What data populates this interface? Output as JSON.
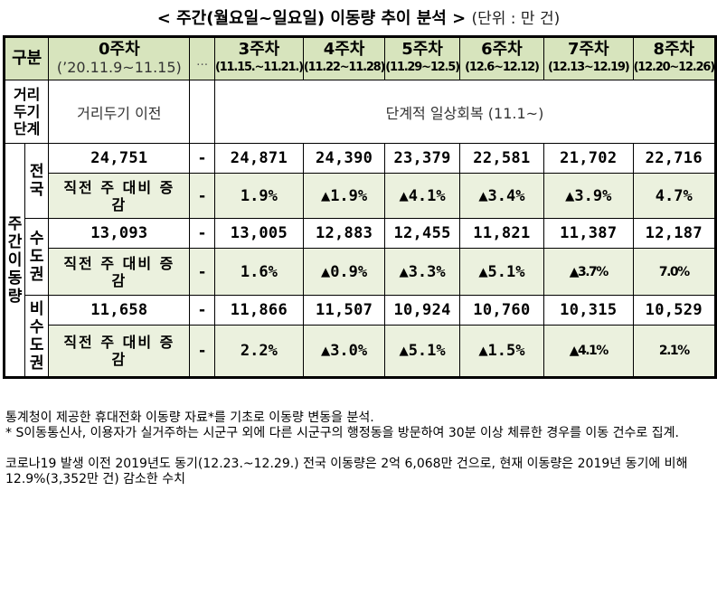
{
  "title": {
    "main": "< 주간(월요일~일요일) 이동량 추이 분석 >",
    "unit": "(단위 : 만 건)"
  },
  "header": {
    "category_label": "구분",
    "week0_label": "0주차",
    "week0_period": "(’20.11.9~11.15)",
    "ellipsis": "…",
    "weeks": [
      {
        "label": "3주차",
        "period": "(11.15.~11.21.)"
      },
      {
        "label": "4주차",
        "period": "(11.22~11.28)"
      },
      {
        "label": "5주차",
        "period": "(11.29~12.5)"
      },
      {
        "label": "6주차",
        "period": "(12.6~12.12)"
      },
      {
        "label": "7주차",
        "period": "(12.13~12.19)"
      },
      {
        "label": "8주차",
        "period": "(12.20~12.26)"
      }
    ]
  },
  "distancing_row": {
    "label": "거리두기단계",
    "label_lines": [
      "거리",
      "두기",
      "단계"
    ],
    "before": "거리두기 이전",
    "phase": "단계적 일상회복 (11.1~)"
  },
  "group_label": "주간이동량",
  "group_label_chars": [
    "주",
    "간",
    "이",
    "동",
    "량"
  ],
  "wow_label": "직전 주 대비 증감",
  "wow_label_lines": [
    "직전 주 대비 증",
    "감"
  ],
  "regions": [
    {
      "name": "전국",
      "name_chars": [
        "전",
        "국"
      ],
      "week0": "24,751",
      "ellipsis": "-",
      "values": [
        "24,871",
        "24,390",
        "23,379",
        "22,581",
        "21,702",
        "22,716"
      ],
      "wow_week0": "",
      "wow_ellipsis": "-",
      "wow": [
        "1.9%",
        "▲1.9%",
        "▲4.1%",
        "▲3.4%",
        "▲3.9%",
        "4.7%"
      ]
    },
    {
      "name": "수도권",
      "name_chars": [
        "수",
        "도",
        "권"
      ],
      "week0": "13,093",
      "ellipsis": "-",
      "values": [
        "13,005",
        "12,883",
        "12,455",
        "11,821",
        "11,387",
        "12,187"
      ],
      "wow_week0": "",
      "wow_ellipsis": "-",
      "wow": [
        "1.6%",
        "▲0.9%",
        "▲3.3%",
        "▲5.1%",
        "▲3.7%",
        "7.0%"
      ]
    },
    {
      "name": "비수도권",
      "name_chars": [
        "비",
        "수",
        "도",
        "권"
      ],
      "week0": "11,658",
      "ellipsis": "-",
      "values": [
        "11,866",
        "11,507",
        "10,924",
        "10,760",
        "10,315",
        "10,529"
      ],
      "wow_week0": "",
      "wow_ellipsis": "-",
      "wow": [
        "2.2%",
        "▲3.0%",
        "▲5.1%",
        "▲1.5%",
        "▲4.1%",
        "2.1%"
      ]
    }
  ],
  "notes": {
    "line1": "통계청이 제공한 휴대전화 이동량 자료*를 기초로 이동량 변동을 분석.",
    "line2": "* S이동통신사, 이용자가 실거주하는 시군구 외에 다른 시군구의 행정동을 방문하여 30분 이상 체류한 경우를 이동 건수로 집계.",
    "line3": "코로나19 발생 이전 2019년도 동기(12.23.~12.29.) 전국 이동량은 2억 6,068만 건으로, 현재 이동량은 2019년 동기에 비해 12.9%(3,352만 건) 감소한 수치"
  }
}
